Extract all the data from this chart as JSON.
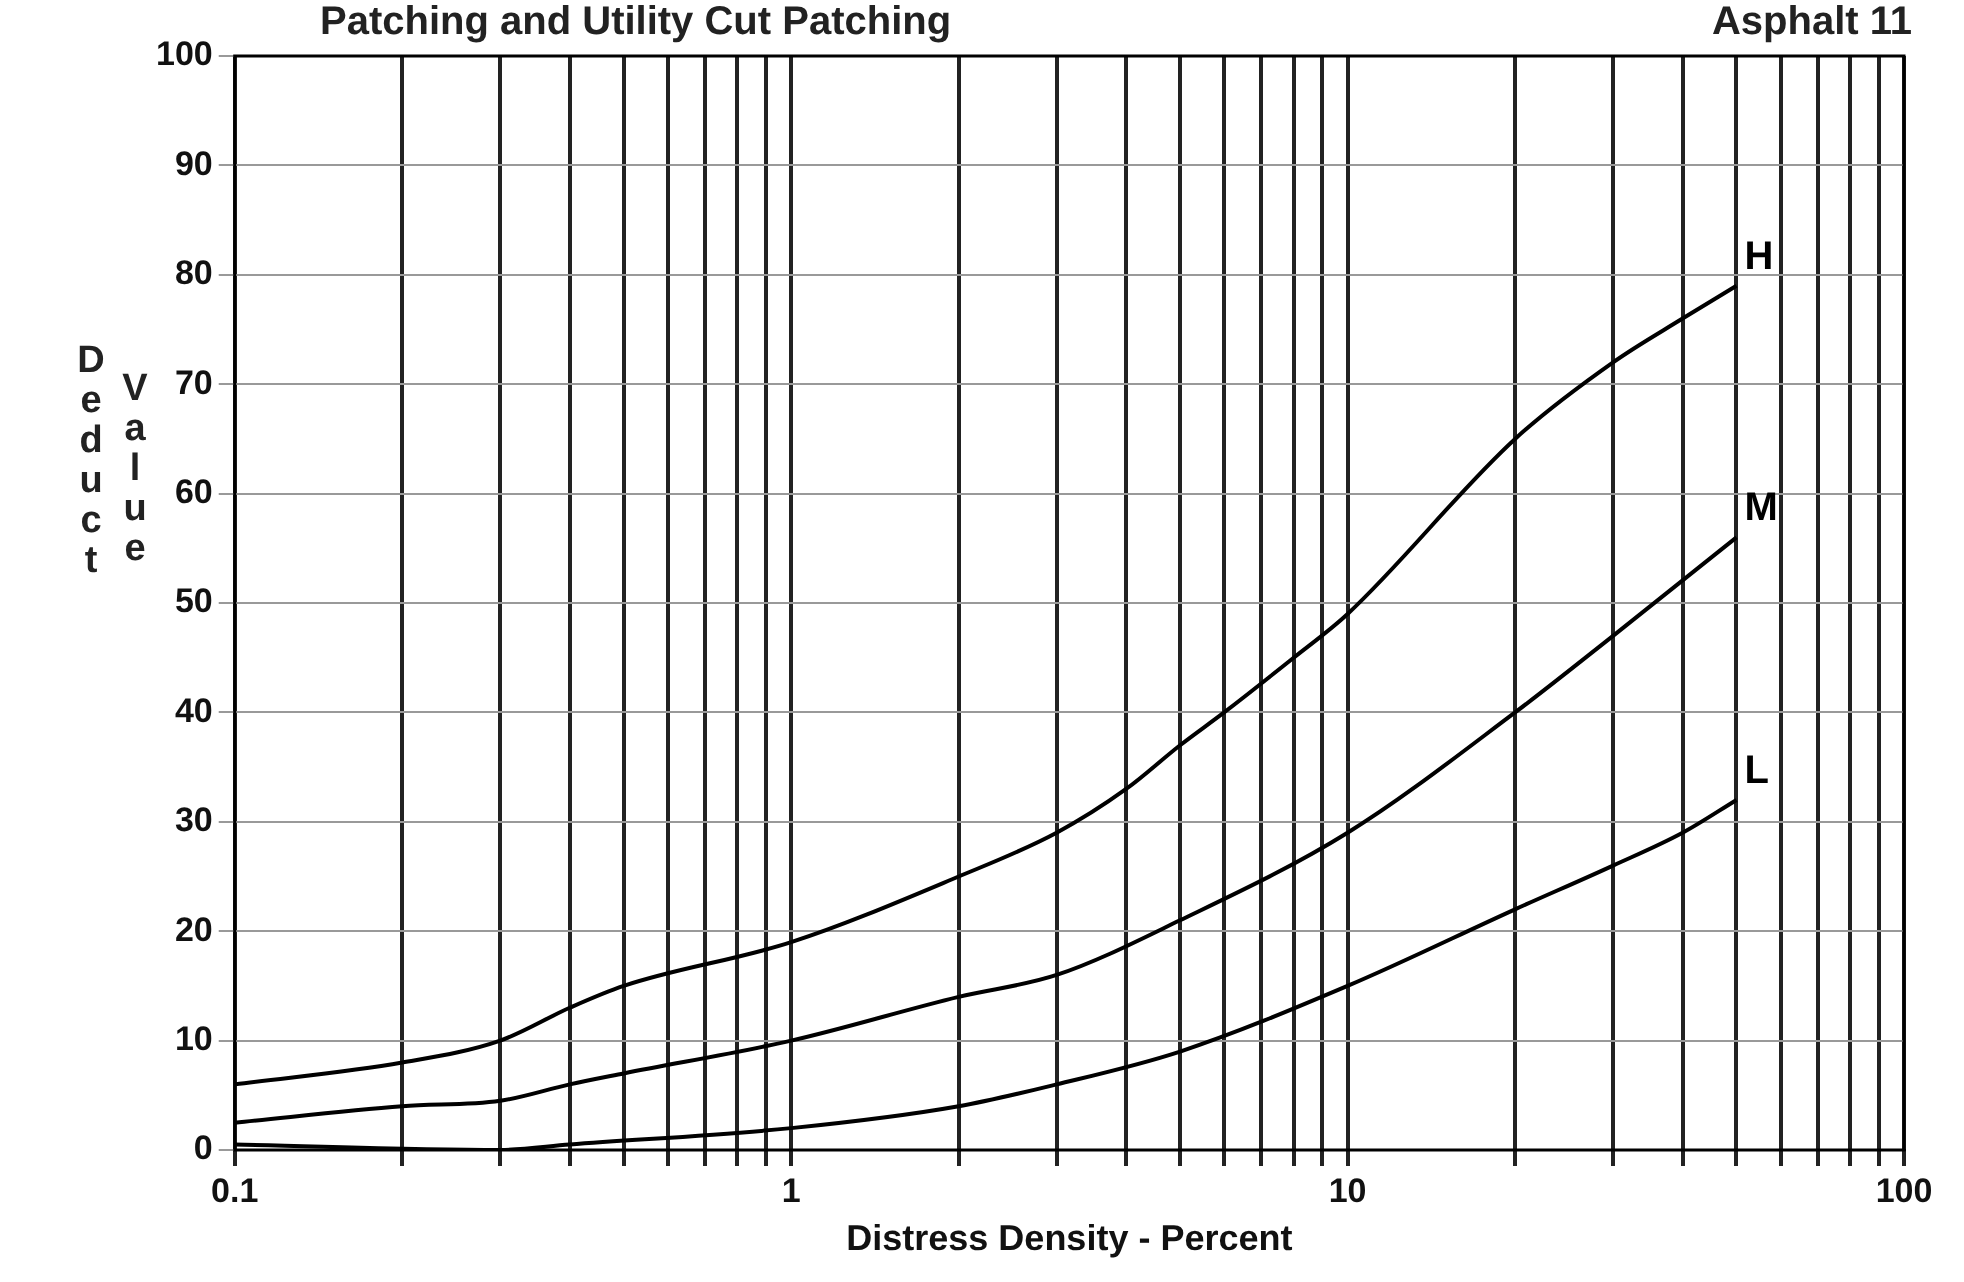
{
  "chart_data": {
    "type": "line",
    "title": "Patching and Utility Cut Patching",
    "subtitle": "Asphalt 11",
    "xlabel": "Distress Density - Percent",
    "ylabel": "Deduct Value",
    "log": "x",
    "grid": true,
    "legend": false,
    "marker": "none",
    "line_style": "solid",
    "xlim": [
      0.1,
      100
    ],
    "xticks": [
      0.1,
      {
        "value": 0.2,
        "label": null
      },
      {
        "value": 0.3,
        "label": null
      },
      {
        "value": 0.4,
        "label": null
      },
      {
        "value": 0.5,
        "label": null
      },
      {
        "value": 0.6,
        "label": null
      },
      {
        "value": 0.7,
        "label": null
      },
      {
        "value": 0.8,
        "label": null
      },
      {
        "value": 0.9,
        "label": null
      },
      1,
      {
        "value": 2,
        "label": null
      },
      {
        "value": 3,
        "label": null
      },
      {
        "value": 4,
        "label": null
      },
      {
        "value": 5,
        "label": null
      },
      {
        "value": 6,
        "label": null
      },
      {
        "value": 7,
        "label": null
      },
      {
        "value": 8,
        "label": null
      },
      {
        "value": 9,
        "label": null
      },
      10,
      {
        "value": 20,
        "label": null
      },
      {
        "value": 30,
        "label": null
      },
      {
        "value": 40,
        "label": null
      },
      {
        "value": 50,
        "label": null
      },
      {
        "value": 60,
        "label": null
      },
      {
        "value": 70,
        "label": null
      },
      {
        "value": 80,
        "label": null
      },
      {
        "value": 90,
        "label": null
      },
      100
    ],
    "ylim": [
      0,
      100
    ],
    "yticks": [
      0,
      10,
      20,
      30,
      40,
      50,
      60,
      70,
      80,
      90,
      100
    ],
    "series": [
      {
        "name": "H",
        "color": "#000000",
        "x": [
          0.1,
          0.2,
          0.3,
          0.4,
          0.5,
          1,
          2,
          3,
          4,
          5,
          6,
          8,
          10,
          20,
          30,
          40,
          50
        ],
        "values": [
          6,
          8,
          10,
          13,
          15,
          19,
          25,
          29,
          33,
          37,
          40,
          45,
          49,
          65,
          72,
          76,
          79
        ]
      },
      {
        "name": "M",
        "color": "#000000",
        "x": [
          0.1,
          0.2,
          0.3,
          0.4,
          0.5,
          1,
          2,
          3,
          5,
          10,
          20,
          30,
          50
        ],
        "values": [
          2.5,
          4,
          4.5,
          6,
          7,
          10,
          14,
          16,
          21,
          29,
          40,
          47,
          56
        ]
      },
      {
        "name": "L",
        "color": "#000000",
        "x": [
          0.1,
          0.3,
          0.4,
          1,
          2,
          3,
          5,
          10,
          20,
          30,
          40,
          50
        ],
        "values": [
          0.5,
          0,
          0.5,
          2,
          4,
          6,
          9,
          15,
          22,
          26,
          29,
          32
        ]
      }
    ]
  }
}
